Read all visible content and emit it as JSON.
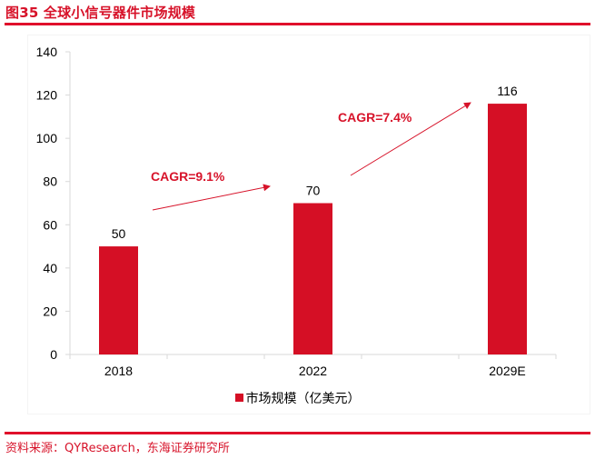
{
  "figure": {
    "title": "图35  全球小信号器件市场规模",
    "source": "资料来源：QYResearch，东海证券研究所"
  },
  "colors": {
    "accent": "#E0102B",
    "bar": "#D50F25",
    "axis": "#D9D9D9"
  },
  "chart_data": {
    "type": "bar",
    "title": "",
    "xlabel": "",
    "ylabel": "",
    "categories": [
      "2018",
      "2022",
      "2029E"
    ],
    "series": [
      {
        "name": "市场规模（亿美元）",
        "values": [
          50,
          70,
          116
        ]
      }
    ],
    "data_labels": [
      "50",
      "70",
      "116"
    ],
    "ylim": [
      0,
      140
    ],
    "yticks": [
      0,
      20,
      40,
      60,
      80,
      100,
      120,
      140
    ],
    "ytick_labels": [
      "0",
      "20",
      "40",
      "60",
      "80",
      "100",
      "120",
      "140"
    ],
    "grid": false,
    "legend": {
      "position": "bottom",
      "entries": [
        "市场规模（亿美元）"
      ]
    },
    "annotations": [
      {
        "text": "CAGR=9.1%",
        "from": "2018",
        "to": "2022"
      },
      {
        "text": "CAGR=7.4%",
        "from": "2022",
        "to": "2029E"
      }
    ]
  }
}
